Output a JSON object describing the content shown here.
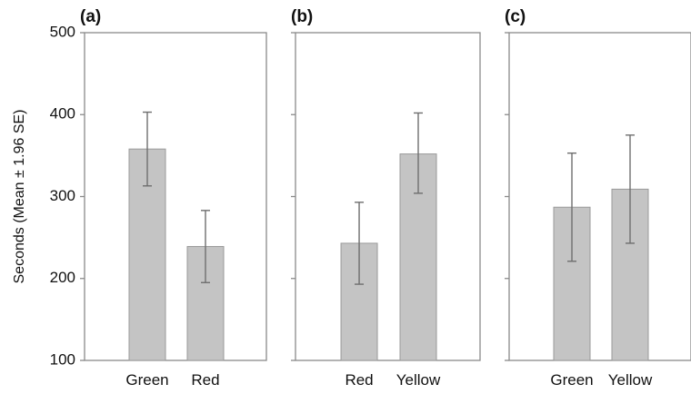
{
  "chart_data": [
    {
      "type": "bar",
      "panel_label": "(a)",
      "categories": [
        "Green",
        "Red"
      ],
      "values": [
        358,
        239
      ],
      "error_low": [
        313,
        195
      ],
      "error_high": [
        403,
        283
      ],
      "ylabel": "Seconds (Mean ± 1.96 SE)",
      "ylim": [
        100,
        500
      ],
      "yticks": [
        "100",
        "200",
        "300",
        "400",
        "500"
      ],
      "grid": false
    },
    {
      "type": "bar",
      "panel_label": "(b)",
      "categories": [
        "Red",
        "Yellow"
      ],
      "values": [
        243,
        352
      ],
      "error_low": [
        193,
        304
      ],
      "error_high": [
        293,
        402
      ],
      "ylim": [
        100,
        500
      ],
      "grid": false
    },
    {
      "type": "bar",
      "panel_label": "(c)",
      "categories": [
        "Green",
        "Yellow"
      ],
      "values": [
        287,
        309
      ],
      "error_low": [
        221,
        243
      ],
      "error_high": [
        353,
        375
      ],
      "ylim": [
        100,
        500
      ],
      "grid": false
    }
  ],
  "colors": {
    "bar_fill": "#c4c4c4",
    "bar_stroke": "#9a9a9a",
    "axis": "#8a8a8a",
    "error_bar": "#6e6e6e"
  }
}
